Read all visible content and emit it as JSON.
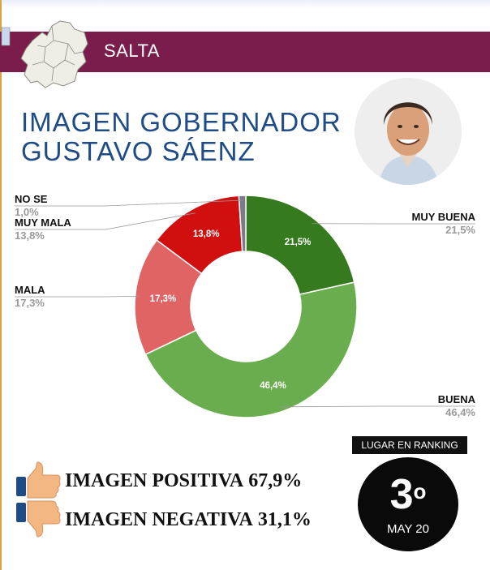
{
  "header": {
    "region": "SALTA"
  },
  "title": {
    "line1": "IMAGEN GOBERNADOR",
    "line2": "GUSTAVO SÁENZ"
  },
  "colors": {
    "banner": "#7a1d4c",
    "title": "#1f4b86",
    "muy_buena": "#357a1e",
    "buena": "#6aad4f",
    "mala": "#e06464",
    "muy_mala": "#d10f0f",
    "no_se": "#7a7a88"
  },
  "chart_data": {
    "type": "pie",
    "donut": true,
    "slices": [
      {
        "label": "MUY BUENA",
        "value": 21.5,
        "display": "21,5%",
        "color": "#357a1e"
      },
      {
        "label": "BUENA",
        "value": 46.4,
        "display": "46,4%",
        "color": "#6aad4f"
      },
      {
        "label": "MALA",
        "value": 17.3,
        "display": "17,3%",
        "color": "#e06464"
      },
      {
        "label": "MUY MALA",
        "value": 13.8,
        "display": "13,8%",
        "color": "#d10f0f"
      },
      {
        "label": "NO SE",
        "value": 1.0,
        "display": "1,0%",
        "color": "#7a7a88"
      }
    ]
  },
  "summary": {
    "positive": {
      "label": "IMAGEN POSITIVA",
      "value": "67,9%",
      "icon": "thumbs-up-icon"
    },
    "negative": {
      "label": "IMAGEN NEGATIVA",
      "value": "31,1%",
      "icon": "thumbs-down-icon"
    }
  },
  "ranking": {
    "label": "LUGAR EN RANKING",
    "position": "3",
    "suffix": "o",
    "date": "MAY 20"
  }
}
